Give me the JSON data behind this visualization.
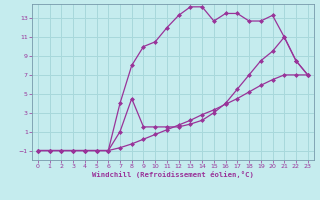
{
  "xlabel": "Windchill (Refroidissement éolien,°C)",
  "bg_color": "#c5ecee",
  "grid_color": "#a8d8db",
  "line_color": "#993399",
  "spine_color": "#7799aa",
  "xlim": [
    -0.5,
    23.5
  ],
  "ylim": [
    -2.0,
    14.5
  ],
  "xticks": [
    0,
    1,
    2,
    3,
    4,
    5,
    6,
    7,
    8,
    9,
    10,
    11,
    12,
    13,
    14,
    15,
    16,
    17,
    18,
    19,
    20,
    21,
    22,
    23
  ],
  "yticks": [
    -1,
    1,
    3,
    5,
    7,
    9,
    11,
    13
  ],
  "curve1_x": [
    0,
    1,
    2,
    3,
    4,
    5,
    6,
    7,
    8,
    9,
    10,
    11,
    12,
    13,
    14,
    15,
    16,
    17,
    18,
    19,
    20,
    21,
    22,
    23
  ],
  "curve1_y": [
    -1,
    -1,
    -1,
    -1,
    -1,
    -1,
    -1,
    4,
    8,
    10,
    10.5,
    12,
    13.3,
    14.2,
    14.2,
    12.7,
    13.5,
    13.5,
    12.7,
    12.7,
    13.3,
    11.0,
    8.5,
    7.0
  ],
  "curve2_x": [
    0,
    1,
    2,
    3,
    4,
    5,
    6,
    7,
    8,
    9,
    10,
    11,
    12,
    13,
    14,
    15,
    16,
    17,
    18,
    19,
    20,
    21,
    22,
    23
  ],
  "curve2_y": [
    -1,
    -1,
    -1,
    -1,
    -1,
    -1,
    -1,
    1.0,
    4.5,
    1.5,
    1.5,
    1.5,
    1.5,
    1.8,
    2.2,
    3.0,
    4.0,
    5.5,
    7.0,
    8.5,
    9.5,
    11.0,
    8.5,
    7.0
  ],
  "curve3_x": [
    0,
    1,
    2,
    3,
    4,
    5,
    6,
    7,
    8,
    9,
    10,
    11,
    12,
    13,
    14,
    15,
    16,
    17,
    18,
    19,
    20,
    21,
    22,
    23
  ],
  "curve3_y": [
    -1,
    -1,
    -1,
    -1,
    -1,
    -1,
    -1,
    -0.7,
    -0.3,
    0.2,
    0.7,
    1.2,
    1.7,
    2.2,
    2.8,
    3.3,
    3.9,
    4.5,
    5.2,
    5.9,
    6.5,
    7.0,
    7.0,
    7.0
  ]
}
